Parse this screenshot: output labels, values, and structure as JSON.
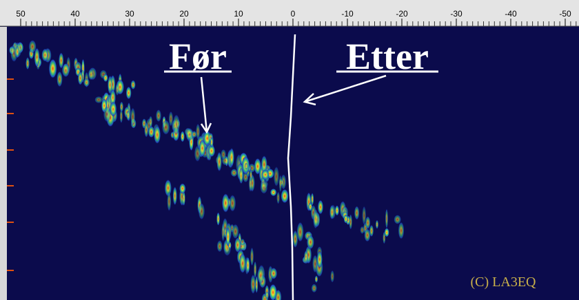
{
  "ruler": {
    "ticks": [
      "50",
      "40",
      "30",
      "20",
      "10",
      "0",
      "-10",
      "-20",
      "-30",
      "-40",
      "-50"
    ]
  },
  "annotations": {
    "before": "Før",
    "after": "Etter",
    "credit": "(C) LA3EQ"
  }
}
